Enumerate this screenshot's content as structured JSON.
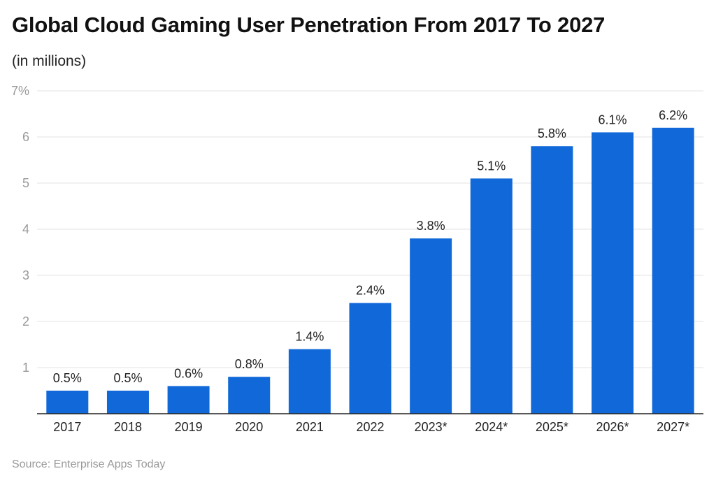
{
  "chart_data": {
    "type": "bar",
    "title": "Global Cloud Gaming User Penetration From 2017 To 2027",
    "subtitle": "(in millions)",
    "categories": [
      "2017",
      "2018",
      "2019",
      "2020",
      "2021",
      "2022",
      "2023*",
      "2024*",
      "2025*",
      "2026*",
      "2027*"
    ],
    "values": [
      0.5,
      0.5,
      0.6,
      0.8,
      1.4,
      2.4,
      3.8,
      5.1,
      5.8,
      6.1,
      6.2
    ],
    "data_labels": [
      "0.5%",
      "0.5%",
      "0.6%",
      "0.8%",
      "1.4%",
      "2.4%",
      "3.8%",
      "5.1%",
      "5.8%",
      "6.1%",
      "6.2%"
    ],
    "y_ticks": [
      "",
      "1",
      "2",
      "3",
      "4",
      "5",
      "6",
      "7%"
    ],
    "ylim": [
      0,
      7
    ],
    "grid": true,
    "bar_color": "#1169d9",
    "source": "Source: Enterprise Apps Today"
  }
}
